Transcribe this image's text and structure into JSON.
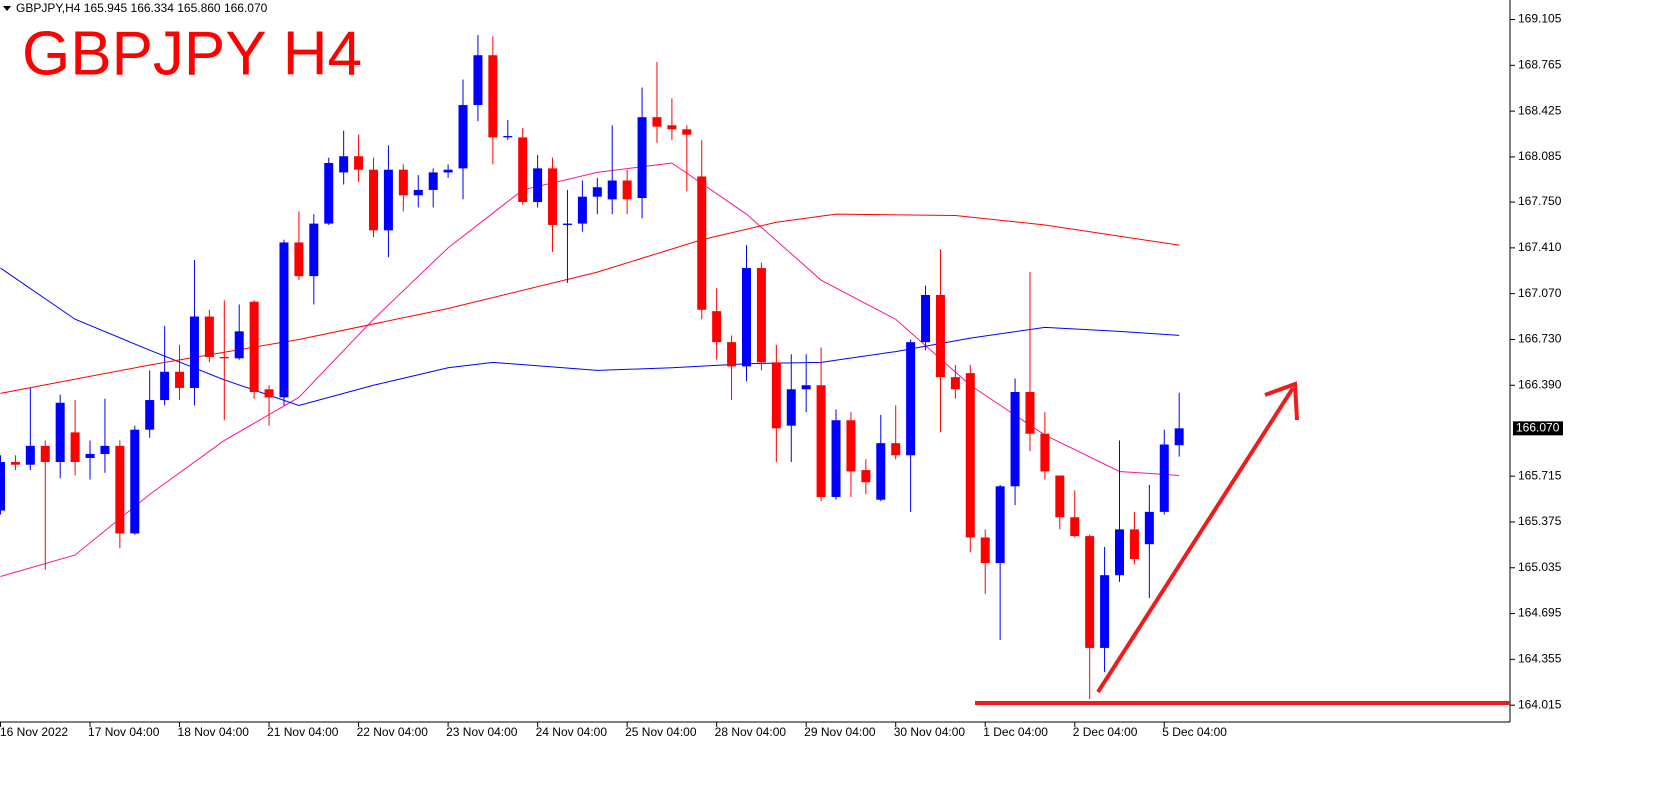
{
  "chart_data": {
    "type": "candlestick",
    "header": "GBPJPY,H4  165.945 166.334 165.860 166.070",
    "title": "GBPJPY H4",
    "bull_color": "#0000ff",
    "bear_color": "#ff0000",
    "categories": [
      "16 Nov 2022",
      null,
      null,
      null,
      null,
      null,
      "17 Nov 04:00",
      null,
      null,
      null,
      null,
      null,
      "18 Nov 04:00",
      null,
      null,
      null,
      null,
      null,
      "21 Nov 04:00",
      null,
      null,
      null,
      null,
      null,
      "22 Nov 04:00",
      null,
      null,
      null,
      null,
      null,
      "23 Nov 04:00",
      null,
      null,
      null,
      null,
      null,
      "24 Nov 04:00",
      null,
      null,
      null,
      null,
      null,
      "25 Nov 04:00",
      null,
      null,
      null,
      null,
      null,
      "28 Nov 04:00",
      null,
      null,
      null,
      null,
      null,
      "29 Nov 04:00",
      null,
      null,
      null,
      null,
      null,
      "30 Nov 04:00",
      null,
      null,
      null,
      null,
      null,
      "1 Dec 04:00",
      null,
      null,
      null,
      null,
      null,
      "2 Dec 04:00",
      null,
      null,
      null,
      null,
      null,
      "5 Dec 04:00",
      null
    ],
    "open": [
      165.46,
      165.82,
      165.8,
      165.94,
      165.82,
      166.04,
      165.85,
      165.88,
      165.94,
      165.29,
      166.06,
      166.28,
      166.49,
      166.37,
      166.9,
      166.6,
      166.59,
      167.01,
      166.36,
      166.3,
      167.45,
      167.2,
      167.59,
      167.97,
      168.09,
      167.99,
      167.54,
      167.99,
      167.8,
      167.84,
      167.97,
      168.0,
      168.47,
      168.84,
      168.23,
      168.23,
      167.75,
      168.0,
      167.58,
      167.59,
      167.79,
      167.77,
      167.91,
      167.78,
      168.38,
      168.32,
      168.29,
      167.94,
      166.94,
      166.71,
      166.53,
      167.26,
      166.56,
      166.09,
      166.36,
      166.39,
      165.56,
      166.13,
      165.76,
      165.54,
      165.96,
      165.87,
      166.71,
      167.06,
      166.45,
      166.48,
      165.26,
      165.07,
      165.64,
      166.34,
      166.03,
      165.72,
      165.41,
      165.27,
      164.44,
      164.98,
      165.32,
      165.21,
      165.45,
      165.945
    ],
    "high": [
      165.87,
      165.87,
      166.37,
      165.98,
      166.32,
      166.28,
      165.98,
      166.29,
      165.98,
      166.09,
      166.5,
      166.83,
      166.69,
      167.32,
      166.95,
      167.02,
      166.99,
      167.02,
      166.39,
      167.47,
      167.68,
      167.66,
      168.08,
      168.28,
      168.25,
      168.08,
      168.17,
      168.03,
      167.95,
      168.0,
      168.03,
      168.66,
      168.99,
      168.98,
      168.36,
      168.3,
      168.1,
      168.08,
      167.84,
      167.91,
      167.93,
      168.32,
      167.99,
      168.6,
      168.79,
      168.52,
      168.32,
      168.21,
      167.11,
      166.76,
      167.43,
      167.3,
      166.69,
      166.62,
      166.62,
      166.67,
      166.21,
      166.19,
      165.84,
      166.17,
      166.24,
      166.73,
      167.13,
      167.4,
      166.54,
      166.54,
      165.32,
      165.65,
      166.44,
      167.23,
      166.19,
      165.72,
      165.61,
      165.28,
      165.19,
      165.98,
      165.45,
      165.65,
      166.06,
      166.334
    ],
    "low": [
      165.43,
      165.76,
      165.76,
      165.02,
      165.7,
      165.72,
      165.69,
      165.74,
      165.18,
      165.28,
      166.0,
      166.24,
      166.28,
      166.24,
      166.56,
      166.13,
      166.58,
      166.29,
      166.09,
      166.24,
      167.17,
      166.99,
      167.58,
      167.88,
      167.9,
      167.49,
      167.34,
      167.68,
      167.71,
      167.71,
      167.93,
      167.77,
      168.35,
      168.03,
      168.21,
      167.73,
      167.71,
      167.38,
      167.15,
      167.53,
      167.66,
      167.66,
      167.66,
      167.63,
      168.19,
      168.21,
      167.83,
      166.88,
      166.58,
      166.28,
      166.42,
      166.5,
      165.82,
      165.82,
      166.19,
      165.53,
      165.54,
      165.56,
      165.58,
      165.53,
      165.84,
      165.45,
      166.65,
      166.04,
      166.29,
      165.15,
      164.84,
      164.5,
      165.5,
      165.9,
      165.69,
      165.32,
      165.26,
      164.06,
      164.26,
      164.93,
      165.06,
      164.81,
      165.43,
      165.86
    ],
    "close": [
      165.82,
      165.8,
      165.94,
      165.82,
      166.26,
      165.82,
      165.88,
      165.94,
      165.29,
      166.06,
      166.28,
      166.49,
      166.37,
      166.9,
      166.6,
      166.59,
      166.79,
      166.34,
      166.3,
      167.45,
      167.2,
      167.59,
      168.04,
      168.09,
      167.99,
      167.54,
      167.99,
      167.8,
      167.84,
      167.97,
      167.99,
      168.47,
      168.84,
      168.23,
      168.24,
      167.75,
      168.0,
      167.58,
      167.59,
      167.79,
      167.86,
      167.91,
      167.77,
      168.38,
      168.31,
      168.29,
      168.25,
      166.95,
      166.71,
      166.53,
      167.26,
      166.56,
      166.07,
      166.36,
      166.39,
      165.56,
      166.13,
      165.75,
      165.67,
      165.96,
      165.87,
      166.71,
      167.06,
      166.45,
      166.36,
      165.26,
      165.07,
      165.64,
      166.34,
      166.03,
      165.75,
      165.41,
      165.27,
      164.44,
      164.98,
      165.32,
      165.1,
      165.45,
      165.95,
      166.07
    ],
    "moving_averages": [
      {
        "color": "#ff1493",
        "x": [
          0,
          5,
          10,
          15,
          20,
          25,
          30,
          35,
          40,
          45,
          50,
          55,
          60,
          65,
          70,
          75,
          79
        ],
        "values": [
          164.97,
          165.13,
          165.58,
          165.98,
          166.3,
          166.88,
          167.41,
          167.84,
          167.97,
          168.04,
          167.66,
          167.17,
          166.88,
          166.39,
          166.02,
          165.75,
          165.72
        ]
      },
      {
        "color": "#0000ff",
        "x": [
          0,
          5,
          10,
          15,
          20,
          25,
          30,
          33,
          40,
          45,
          50,
          55,
          60,
          65,
          70,
          75,
          79
        ],
        "values": [
          167.26,
          166.88,
          166.65,
          166.43,
          166.24,
          166.39,
          166.52,
          166.56,
          166.5,
          166.52,
          166.55,
          166.56,
          166.64,
          166.74,
          166.82,
          166.79,
          166.76
        ]
      },
      {
        "color": "#ff0000",
        "x": [
          0,
          10,
          20,
          30,
          40,
          47,
          52,
          56,
          64,
          70,
          79
        ],
        "values": [
          166.33,
          166.54,
          166.73,
          166.96,
          167.23,
          167.47,
          167.6,
          167.66,
          167.65,
          167.58,
          167.43
        ]
      }
    ],
    "last_price": {
      "value": 166.07,
      "label": "166.070"
    },
    "ylim": [
      163.89,
      169.25
    ],
    "yticks": [
      169.105,
      168.765,
      168.425,
      168.085,
      {
        "value": 167.75,
        "label": "167.750"
      },
      {
        "value": 167.41,
        "label": "167.410"
      },
      {
        "value": 167.07,
        "label": "167.070"
      },
      {
        "value": 166.73,
        "label": "166.730"
      },
      {
        "value": 166.39,
        "label": "166.390"
      },
      165.715,
      165.375,
      165.035,
      164.695,
      164.355,
      164.015
    ]
  }
}
